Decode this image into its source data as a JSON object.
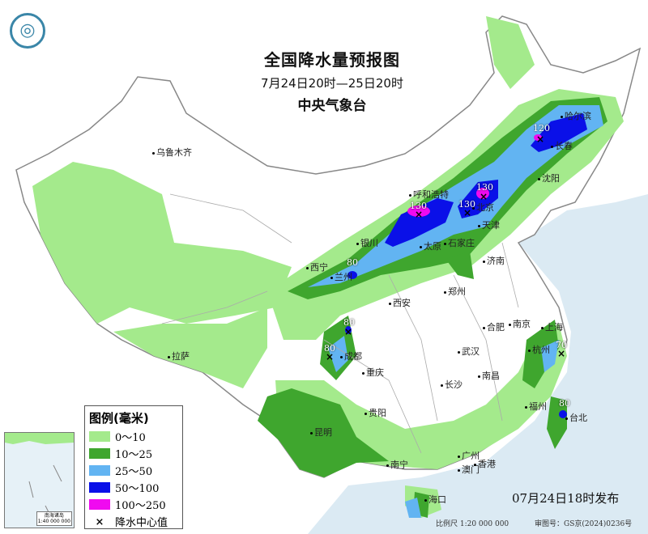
{
  "header": {
    "title": "全国降水量预报图",
    "period": "7月24日20时—25日20时",
    "issuer": "中央气象台"
  },
  "legend": {
    "title": "图例(毫米)",
    "items": [
      {
        "label": "0～10",
        "color": "#a4ea8c"
      },
      {
        "label": "10～25",
        "color": "#3fa62e"
      },
      {
        "label": "25～50",
        "color": "#62b4f2"
      },
      {
        "label": "50～100",
        "color": "#0a10e8"
      },
      {
        "label": "100～250",
        "color": "#f00af0"
      }
    ],
    "center_marker": {
      "symbol": "×",
      "label": "降水中心值"
    }
  },
  "cities": [
    "乌鲁木齐",
    "哈尔滨",
    "长春",
    "沈阳",
    "呼和浩特",
    "北京",
    "天津",
    "石家庄",
    "太原",
    "银川",
    "西宁",
    "兰州",
    "济南",
    "郑州",
    "西安",
    "合肥",
    "南京",
    "上海",
    "杭州",
    "武汉",
    "成都",
    "重庆",
    "拉萨",
    "长沙",
    "南昌",
    "福州",
    "台北",
    "贵阳",
    "昆明",
    "南宁",
    "广州",
    "澳门",
    "香港",
    "海口"
  ],
  "rain_centers": [
    "120",
    "130",
    "130",
    "130",
    "80",
    "80",
    "80",
    "70",
    "80"
  ],
  "inset": {
    "label": "南海诸岛",
    "scale": "1:40 000 000"
  },
  "footer": {
    "issued": "07月24日18时发布",
    "scale": "比例尺 1:20 000 000",
    "approval": "审图号：GS京(2024)0236号"
  },
  "colors": {
    "sea": "#dbeaf3",
    "land": "#ffffff",
    "border": "#888888"
  }
}
